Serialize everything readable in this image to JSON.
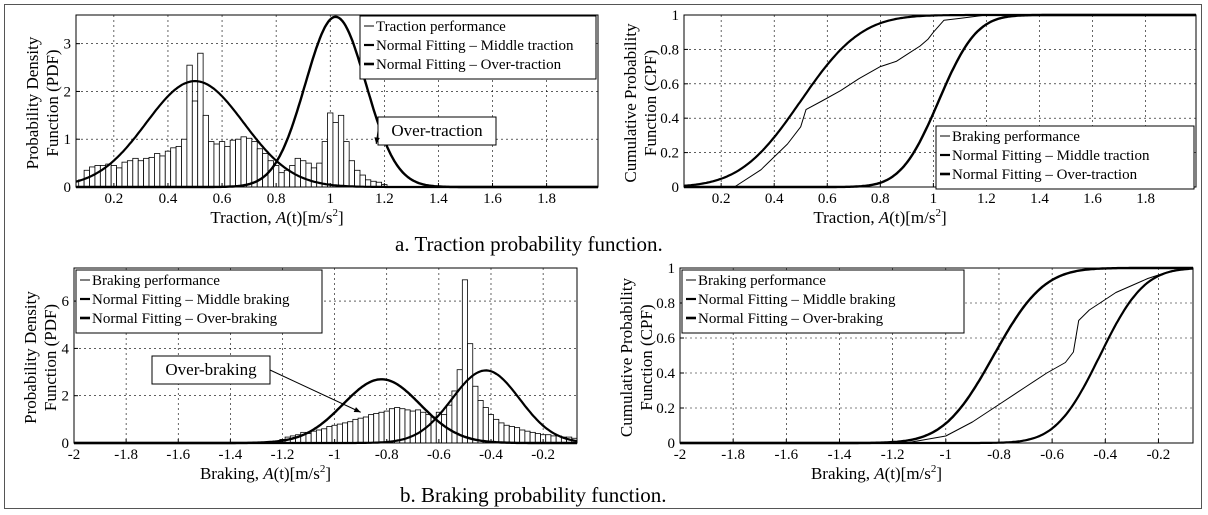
{
  "captions": {
    "a": "a. Traction probability function.",
    "b": "b. Braking probability function."
  },
  "chart_data": [
    {
      "id": "traction-pdf",
      "type": "bar",
      "ylabel": [
        "Probability Density",
        "Function (PDF)"
      ],
      "xlabel": "Traction, A(t)[m/s2]",
      "xlim": [
        0.06,
        1.99
      ],
      "ylim": [
        0,
        3.6
      ],
      "xticks": [
        0.2,
        0.4,
        0.6,
        0.8,
        1,
        1.2,
        1.4,
        1.6,
        1.8
      ],
      "xtick_labels": [
        "0.2",
        "0.4",
        "0.6",
        "0.8",
        "1",
        "1.2",
        "1.4",
        "1.6",
        "1.8"
      ],
      "yticks": [
        0,
        1,
        2,
        3
      ],
      "ytick_labels": [
        "0",
        "1",
        "2",
        "3"
      ],
      "grid": true,
      "legend_position": "top-right",
      "legend": [
        "Traction performance",
        "Normal Fitting – Middle traction",
        "Normal Fitting – Over-traction"
      ],
      "annotation": {
        "text": "Over-traction",
        "points_to": [
          1.17,
          0.9
        ]
      },
      "bin_width": 0.02,
      "bins": [
        [
          0.08,
          0.15
        ],
        [
          0.1,
          0.35
        ],
        [
          0.12,
          0.42
        ],
        [
          0.14,
          0.45
        ],
        [
          0.16,
          0.45
        ],
        [
          0.18,
          0.48
        ],
        [
          0.2,
          0.45
        ],
        [
          0.22,
          0.4
        ],
        [
          0.24,
          0.52
        ],
        [
          0.26,
          0.55
        ],
        [
          0.28,
          0.6
        ],
        [
          0.3,
          0.55
        ],
        [
          0.32,
          0.6
        ],
        [
          0.34,
          0.62
        ],
        [
          0.36,
          0.7
        ],
        [
          0.38,
          0.65
        ],
        [
          0.4,
          0.75
        ],
        [
          0.42,
          0.82
        ],
        [
          0.44,
          0.85
        ],
        [
          0.46,
          1.0
        ],
        [
          0.48,
          2.55
        ],
        [
          0.5,
          1.8
        ],
        [
          0.52,
          2.8
        ],
        [
          0.54,
          1.5
        ],
        [
          0.56,
          0.95
        ],
        [
          0.58,
          0.9
        ],
        [
          0.6,
          0.95
        ],
        [
          0.62,
          0.85
        ],
        [
          0.64,
          0.98
        ],
        [
          0.66,
          1.0
        ],
        [
          0.68,
          1.05
        ],
        [
          0.7,
          1.02
        ],
        [
          0.72,
          0.95
        ],
        [
          0.74,
          0.8
        ],
        [
          0.76,
          0.7
        ],
        [
          0.78,
          0.55
        ],
        [
          0.8,
          0.45
        ],
        [
          0.82,
          0.3
        ],
        [
          0.84,
          0.35
        ],
        [
          0.86,
          0.45
        ],
        [
          0.88,
          0.6
        ],
        [
          0.9,
          0.55
        ],
        [
          0.92,
          0.5
        ],
        [
          0.94,
          0.4
        ],
        [
          0.96,
          0.5
        ],
        [
          0.98,
          0.95
        ],
        [
          1.0,
          1.55
        ],
        [
          1.02,
          1.35
        ],
        [
          1.04,
          1.5
        ],
        [
          1.06,
          0.95
        ],
        [
          1.08,
          0.55
        ],
        [
          1.1,
          0.35
        ],
        [
          1.12,
          0.25
        ],
        [
          1.14,
          0.15
        ],
        [
          1.16,
          0.12
        ],
        [
          1.18,
          0.1
        ],
        [
          1.2,
          0.05
        ]
      ],
      "series": [
        {
          "name": "Normal Fitting – Middle traction",
          "kind": "normal",
          "mean": 0.5,
          "sd": 0.18,
          "stroke_width": 2.2
        },
        {
          "name": "Normal Fitting – Over-traction",
          "kind": "normal",
          "mean": 1.02,
          "sd": 0.112,
          "stroke_width": 2.4
        }
      ]
    },
    {
      "id": "traction-cpf",
      "type": "line",
      "ylabel": [
        "Cumulative Probability",
        "Function (CPF)"
      ],
      "xlabel": "Traction, A(t)[m/s2]",
      "xlim": [
        0.06,
        1.99
      ],
      "ylim": [
        0,
        1
      ],
      "xticks": [
        0.2,
        0.4,
        0.6,
        0.8,
        1,
        1.2,
        1.4,
        1.6,
        1.8
      ],
      "xtick_labels": [
        "0.2",
        "0.4",
        "0.6",
        "0.8",
        "1",
        "1.2",
        "1.4",
        "1.6",
        "1.8"
      ],
      "yticks": [
        0,
        0.2,
        0.4,
        0.6,
        0.8,
        1
      ],
      "ytick_labels": [
        "0",
        "0.2",
        "0.4",
        "0.6",
        "0.8",
        "1"
      ],
      "grid": true,
      "legend_position": "bottom-right",
      "legend": [
        "Braking performance",
        "Normal Fitting – Middle traction",
        "Normal Fitting – Over-traction"
      ],
      "series": [
        {
          "name": "Braking performance",
          "kind": "points",
          "stroke_width": 1,
          "points": [
            [
              0.25,
              0
            ],
            [
              0.35,
              0.1
            ],
            [
              0.45,
              0.25
            ],
            [
              0.5,
              0.35
            ],
            [
              0.52,
              0.45
            ],
            [
              0.58,
              0.5
            ],
            [
              0.65,
              0.56
            ],
            [
              0.72,
              0.63
            ],
            [
              0.8,
              0.7
            ],
            [
              0.86,
              0.73
            ],
            [
              0.9,
              0.77
            ],
            [
              0.95,
              0.82
            ],
            [
              0.98,
              0.86
            ],
            [
              1.0,
              0.9
            ],
            [
              1.04,
              0.97
            ],
            [
              1.1,
              0.98
            ],
            [
              1.2,
              1.0
            ],
            [
              1.3,
              1.0
            ]
          ]
        },
        {
          "name": "Normal Fitting – Middle traction",
          "kind": "normal_cdf",
          "mean": 0.5,
          "sd": 0.18,
          "stroke_width": 2.2
        },
        {
          "name": "Normal Fitting – Over-traction",
          "kind": "normal_cdf",
          "mean": 1.02,
          "sd": 0.112,
          "stroke_width": 2.4
        }
      ]
    },
    {
      "id": "braking-pdf",
      "type": "bar",
      "ylabel": [
        "Probability Density",
        "Function (PDF)"
      ],
      "xlabel": "Braking, A(t)[m/s2]",
      "xlim": [
        -2.0,
        -0.07
      ],
      "ylim": [
        0,
        7.4
      ],
      "xticks": [
        -2,
        -1.8,
        -1.6,
        -1.4,
        -1.2,
        -1,
        -0.8,
        -0.6,
        -0.4,
        -0.2
      ],
      "xtick_labels": [
        "-2",
        "-1.8",
        "-1.6",
        "-1.4",
        "-1.2",
        "-1",
        "-0.8",
        "-0.6",
        "-0.4",
        "-0.2"
      ],
      "yticks": [
        0,
        2,
        4,
        6
      ],
      "ytick_labels": [
        "0",
        "2",
        "4",
        "6"
      ],
      "grid": true,
      "legend_position": "top-left",
      "legend": [
        "Braking performance",
        "Normal Fitting – Middle braking",
        "Normal Fitting – Over-braking"
      ],
      "annotation": {
        "text": "Over-braking",
        "points_to": [
          -0.9,
          1.3
        ]
      },
      "bin_width": 0.02,
      "bins": [
        [
          -1.22,
          0.05
        ],
        [
          -1.2,
          0.15
        ],
        [
          -1.18,
          0.25
        ],
        [
          -1.16,
          0.3
        ],
        [
          -1.14,
          0.35
        ],
        [
          -1.12,
          0.45
        ],
        [
          -1.1,
          0.4
        ],
        [
          -1.08,
          0.5
        ],
        [
          -1.06,
          0.55
        ],
        [
          -1.04,
          0.6
        ],
        [
          -1.02,
          0.7
        ],
        [
          -1.0,
          0.75
        ],
        [
          -0.98,
          0.8
        ],
        [
          -0.96,
          0.85
        ],
        [
          -0.94,
          0.9
        ],
        [
          -0.92,
          1.0
        ],
        [
          -0.9,
          1.05
        ],
        [
          -0.88,
          1.1
        ],
        [
          -0.86,
          1.2
        ],
        [
          -0.84,
          1.25
        ],
        [
          -0.82,
          1.3
        ],
        [
          -0.8,
          1.35
        ],
        [
          -0.78,
          1.45
        ],
        [
          -0.76,
          1.5
        ],
        [
          -0.74,
          1.45
        ],
        [
          -0.72,
          1.4
        ],
        [
          -0.7,
          1.35
        ],
        [
          -0.68,
          1.4
        ],
        [
          -0.66,
          1.3
        ],
        [
          -0.64,
          1.2
        ],
        [
          -0.62,
          1.1
        ],
        [
          -0.6,
          1.3
        ],
        [
          -0.58,
          1.2
        ],
        [
          -0.56,
          1.6
        ],
        [
          -0.54,
          2.2
        ],
        [
          -0.52,
          3.1
        ],
        [
          -0.5,
          6.9
        ],
        [
          -0.48,
          4.2
        ],
        [
          -0.46,
          2.4
        ],
        [
          -0.44,
          1.8
        ],
        [
          -0.42,
          1.5
        ],
        [
          -0.4,
          1.2
        ],
        [
          -0.38,
          1.0
        ],
        [
          -0.36,
          0.85
        ],
        [
          -0.34,
          0.75
        ],
        [
          -0.32,
          0.7
        ],
        [
          -0.3,
          0.65
        ],
        [
          -0.28,
          0.55
        ],
        [
          -0.26,
          0.5
        ],
        [
          -0.24,
          0.45
        ],
        [
          -0.22,
          0.4
        ],
        [
          -0.2,
          0.35
        ],
        [
          -0.18,
          0.35
        ],
        [
          -0.16,
          0.3
        ],
        [
          -0.14,
          0.3
        ],
        [
          -0.12,
          0.25
        ],
        [
          -0.1,
          0.25
        ],
        [
          -0.08,
          0.2
        ]
      ],
      "series": [
        {
          "name": "Normal Fitting – Middle braking",
          "kind": "normal",
          "mean": -0.42,
          "sd": 0.13,
          "stroke_width": 2.2
        },
        {
          "name": "Normal Fitting – Over-braking",
          "kind": "normal",
          "mean": -0.82,
          "sd": 0.148,
          "stroke_width": 2.4
        }
      ]
    },
    {
      "id": "braking-cpf",
      "type": "line",
      "ylabel": [
        "Cumulative Probability",
        "Function (CPF)"
      ],
      "xlabel": "Braking, A(t)[m/s2]",
      "xlim": [
        -2.0,
        -0.07
      ],
      "ylim": [
        0,
        1
      ],
      "xticks": [
        -2,
        -1.8,
        -1.6,
        -1.4,
        -1.2,
        -1,
        -0.8,
        -0.6,
        -0.4,
        -0.2
      ],
      "xtick_labels": [
        "-2",
        "-1.8",
        "-1.6",
        "-1.4",
        "-1.2",
        "-1",
        "-0.8",
        "-0.6",
        "-0.4",
        "-0.2"
      ],
      "yticks": [
        0,
        0.2,
        0.4,
        0.6,
        0.8,
        1
      ],
      "ytick_labels": [
        "0",
        "0.2",
        "0.4",
        "0.6",
        "0.8",
        "1"
      ],
      "grid": true,
      "legend_position": "top-left",
      "legend": [
        "Braking performance",
        "Normal Fitting – Middle braking",
        "Normal Fitting – Over-braking"
      ],
      "series": [
        {
          "name": "Braking performance",
          "kind": "points",
          "stroke_width": 1,
          "points": [
            [
              -1.15,
              0
            ],
            [
              -1.0,
              0.04
            ],
            [
              -0.9,
              0.12
            ],
            [
              -0.8,
              0.22
            ],
            [
              -0.7,
              0.32
            ],
            [
              -0.62,
              0.4
            ],
            [
              -0.55,
              0.46
            ],
            [
              -0.52,
              0.52
            ],
            [
              -0.5,
              0.7
            ],
            [
              -0.46,
              0.76
            ],
            [
              -0.42,
              0.8
            ],
            [
              -0.36,
              0.86
            ],
            [
              -0.3,
              0.9
            ],
            [
              -0.24,
              0.94
            ],
            [
              -0.16,
              0.98
            ],
            [
              -0.1,
              1.0
            ]
          ]
        },
        {
          "name": "Normal Fitting – Middle braking",
          "kind": "normal_cdf",
          "mean": -0.42,
          "sd": 0.13,
          "stroke_width": 2.2
        },
        {
          "name": "Normal Fitting – Over-braking",
          "kind": "normal_cdf",
          "mean": -0.82,
          "sd": 0.148,
          "stroke_width": 2.4
        }
      ]
    }
  ]
}
